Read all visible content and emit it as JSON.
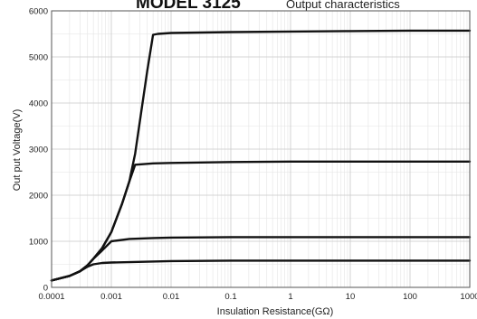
{
  "chart_data": {
    "type": "line",
    "title": "MODEL 3125",
    "subtitle": "Output characteristics",
    "xlabel": "Insulation Resistance(GΩ)",
    "ylabel": "Out put Voltage(V)",
    "x_scale": "log",
    "xlim": [
      0.0001,
      1000
    ],
    "ylim": [
      0,
      6000
    ],
    "grid": true,
    "x_ticks": [
      "0.0001",
      "0.001",
      "0.01",
      "0.1",
      "1",
      "10",
      "100",
      "1000"
    ],
    "y_ticks": [
      "0",
      "1000",
      "2000",
      "3000",
      "4000",
      "5000",
      "6000"
    ],
    "series": [
      {
        "x": [
          0.0001,
          0.0002,
          0.0003,
          0.0004,
          0.0005,
          0.0007,
          0.001,
          0.01,
          0.1,
          1,
          10,
          100,
          1000
        ],
        "y": [
          150,
          250,
          350,
          450,
          500,
          530,
          540,
          570,
          580,
          580,
          580,
          580,
          580
        ]
      },
      {
        "x": [
          0.0001,
          0.0002,
          0.0003,
          0.0004,
          0.0005,
          0.0007,
          0.001,
          0.002,
          0.005,
          0.01,
          0.1,
          1,
          10,
          100,
          1000
        ],
        "y": [
          150,
          250,
          350,
          480,
          620,
          800,
          1000,
          1050,
          1070,
          1080,
          1090,
          1090,
          1090,
          1090,
          1090
        ]
      },
      {
        "x": [
          0.0001,
          0.0002,
          0.0003,
          0.0004,
          0.0005,
          0.0007,
          0.001,
          0.0015,
          0.002,
          0.0025,
          0.005,
          0.01,
          0.1,
          1,
          10,
          100,
          1000
        ],
        "y": [
          150,
          250,
          350,
          480,
          620,
          850,
          1200,
          1800,
          2300,
          2660,
          2690,
          2700,
          2720,
          2730,
          2730,
          2730,
          2730
        ]
      },
      {
        "x": [
          0.0001,
          0.0002,
          0.0003,
          0.0004,
          0.0005,
          0.0007,
          0.001,
          0.0015,
          0.002,
          0.0025,
          0.003,
          0.004,
          0.005,
          0.006,
          0.01,
          0.1,
          1,
          10,
          100,
          1000
        ],
        "y": [
          150,
          250,
          350,
          480,
          620,
          850,
          1200,
          1800,
          2300,
          2900,
          3600,
          4700,
          5480,
          5500,
          5520,
          5540,
          5550,
          5560,
          5570,
          5570
        ]
      }
    ]
  }
}
